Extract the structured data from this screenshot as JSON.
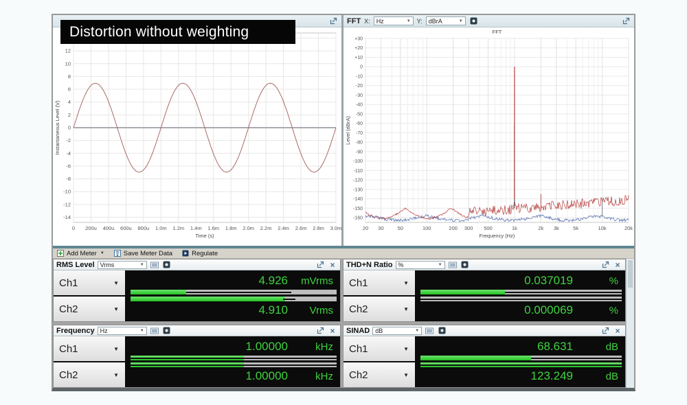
{
  "banner": {
    "text": "Distortion without weighting"
  },
  "colors": {
    "accent_green": "#3fd23f",
    "trace_red": "#b23d3a",
    "trace_blue": "#4a66a8",
    "banner_bg": "#060606",
    "panel_header_bg": "#dde9ee",
    "toolbar_bg": "#d6d3cb",
    "meter_bg": "#0b0b0b"
  },
  "fft_header": {
    "title": "FFT",
    "x_label": "X:",
    "x_value": "Hz",
    "y_label": "Y:",
    "y_value": "dBrA"
  },
  "toolbar": {
    "add_meter": "Add Meter",
    "save_meter_data": "Save Meter Data",
    "regulate": "Regulate"
  },
  "chart_data": [
    {
      "id": "scope",
      "type": "line",
      "title": "",
      "xlabel": "Time (s)",
      "ylabel": "Instantaneous Level (V)",
      "xlim": [
        0,
        0.003
      ],
      "ylim": [
        -14.8,
        14.8
      ],
      "ytick_min": -14,
      "ytick_max": 14,
      "ytick_step": 2,
      "xtick_values": [
        0,
        0.0002,
        0.0004,
        0.0006,
        0.0008,
        0.001,
        0.0012,
        0.0014,
        0.0016,
        0.0018,
        0.002,
        0.0022,
        0.0024,
        0.0026,
        0.0028,
        0.003
      ],
      "xtick_labels": [
        "0",
        "200u",
        "400u",
        "600u",
        "800u",
        "1.0m",
        "1.2m",
        "1.4m",
        "1.6m",
        "1.8m",
        "2.0m",
        "2.2m",
        "2.4m",
        "2.6m",
        "2.8m",
        "3.0m"
      ],
      "grid": true,
      "series": [
        {
          "name": "Ch1",
          "kind": "flat",
          "level_v": 0.005,
          "color": "#70707e"
        },
        {
          "name": "Ch2",
          "kind": "sine",
          "amplitude_vp": 6.94,
          "frequency_hz": 1000,
          "phase_deg": 0,
          "color": "#a86a66"
        }
      ]
    },
    {
      "id": "fft",
      "type": "line",
      "title": "FFT",
      "xlabel": "Frequency (Hz)",
      "ylabel": "Level (dBrA)",
      "x_scale": "log",
      "xlim": [
        20,
        20000
      ],
      "ylim": [
        -165,
        30
      ],
      "ytick_min": -160,
      "ytick_max": 30,
      "ytick_step": 10,
      "xtick_values": [
        20,
        30,
        50,
        100,
        200,
        300,
        500,
        1000,
        2000,
        3000,
        5000,
        10000,
        20000
      ],
      "xtick_labels": [
        "20",
        "30",
        "50",
        "100",
        "200",
        "300",
        "500",
        "1k",
        "2k",
        "3k",
        "5k",
        "10k",
        "20k"
      ],
      "grid": true,
      "series": [
        {
          "name": "Ch1",
          "color": "#4a66a8",
          "noise_floor_db": -160,
          "peak_freq_hz": 1000,
          "peak_level_db": -62,
          "secondary_peaks": [
            {
              "freq_hz": 10000,
              "level_db": -141
            }
          ]
        },
        {
          "name": "Ch2",
          "color": "#b23d3a",
          "noise_floor_db": -157,
          "hf_noise_db": -143,
          "peak_freq_hz": 1000,
          "peak_level_db": 0,
          "secondary_peaks": [
            {
              "freq_hz": 2000,
              "level_db": -135
            }
          ]
        }
      ]
    }
  ],
  "meter_section": {
    "meters": [
      {
        "title": "RMS Level",
        "unit": "Vrms",
        "channels": [
          {
            "label": "Ch1",
            "value": "4.926",
            "unit": "mVrms",
            "bar_pct": 27,
            "line_from": 27,
            "line_to": 78
          },
          {
            "label": "Ch2",
            "value": "4.910",
            "unit": "Vrms",
            "bar_pct": 75,
            "line_from": 74,
            "line_to": 80
          }
        ]
      },
      {
        "title": "THD+N Ratio",
        "unit": "%",
        "channels": [
          {
            "label": "Ch1",
            "value": "0.037019",
            "unit": "%",
            "bar_pct": 42,
            "line_from": 42,
            "line_to": 100
          },
          {
            "label": "Ch2",
            "value": "0.000069",
            "unit": "%",
            "bar_pct": 0,
            "line_from": 0,
            "line_to": 100
          }
        ]
      },
      {
        "title": "Frequency",
        "unit": "Hz",
        "channels": [
          {
            "label": "Ch1",
            "value": "1.00000",
            "unit": "kHz",
            "bar_pct": 55,
            "line_from": 0,
            "line_to": 100
          },
          {
            "label": "Ch2",
            "value": "1.00000",
            "unit": "kHz",
            "bar_pct": 55,
            "line_from": 0,
            "line_to": 100
          }
        ]
      },
      {
        "title": "SINAD",
        "unit": "dB",
        "channels": [
          {
            "label": "Ch1",
            "value": "68.631",
            "unit": "dB",
            "bar_pct": 55,
            "line_from": 55,
            "line_to": 100
          },
          {
            "label": "Ch2",
            "value": "123.249",
            "unit": "dB",
            "bar_pct": 100,
            "line_from": 0,
            "line_to": 100
          }
        ]
      }
    ]
  }
}
